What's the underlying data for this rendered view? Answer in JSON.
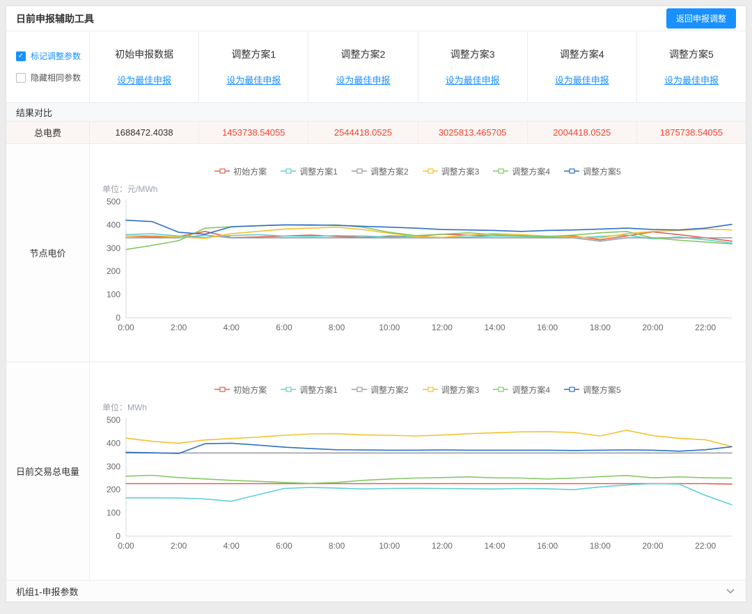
{
  "colors": {
    "accent": "#1890ff",
    "danger": "#f5432e"
  },
  "header": {
    "title": "日前申报辅助工具",
    "back_button": "返回申报调整"
  },
  "filters": {
    "mark_label": "标记调整参数",
    "hide_label": "隐藏相同参数"
  },
  "plans": [
    {
      "label": "初始申报数据",
      "link": "设为最佳申报"
    },
    {
      "label": "调整方案1",
      "link": "设为最佳申报"
    },
    {
      "label": "调整方案2",
      "link": "设为最佳申报"
    },
    {
      "label": "调整方案3",
      "link": "设为最佳申报"
    },
    {
      "label": "调整方案4",
      "link": "设为最佳申报"
    },
    {
      "label": "调整方案5",
      "link": "设为最佳申报"
    }
  ],
  "results": {
    "section_title": "结果对比",
    "row_label": "总电费",
    "values": [
      "1688472.4038",
      "1453738.54055",
      "2544418.0525",
      "3025813.465705",
      "2004418.0525",
      "1875738.54055"
    ]
  },
  "footer": {
    "title": "机组1-申报参数"
  },
  "chart_data": [
    {
      "type": "line",
      "row_label": "节点电价",
      "unit": "单位：元/MWh",
      "ylim": [
        0,
        500
      ],
      "yticks": [
        0,
        100,
        200,
        300,
        400,
        500
      ],
      "x_hours": 24,
      "xtick_labels": [
        "0:00",
        "2:00",
        "4:00",
        "6:00",
        "8:00",
        "10:00",
        "12:00",
        "14:00",
        "16:00",
        "18:00",
        "20:00",
        "22:00"
      ],
      "legend_position": "top-center",
      "grid": false,
      "series": [
        {
          "name": "初始方案",
          "color": "#e06052",
          "values": [
            352,
            348,
            350,
            372,
            345,
            348,
            352,
            356,
            350,
            346,
            352,
            350,
            360,
            356,
            352,
            354,
            350,
            352,
            336,
            352,
            370,
            358,
            344,
            330
          ]
        },
        {
          "name": "调整方案1",
          "color": "#5fd0d5",
          "values": [
            358,
            362,
            352,
            346,
            354,
            358,
            352,
            350,
            354,
            352,
            348,
            350,
            346,
            348,
            352,
            350,
            348,
            344,
            350,
            356,
            340,
            348,
            336,
            322
          ]
        },
        {
          "name": "调整方案2",
          "color": "#9aa0a6",
          "values": [
            344,
            344,
            344,
            356,
            344,
            344,
            344,
            344,
            344,
            344,
            344,
            344,
            344,
            344,
            344,
            344,
            344,
            344,
            330,
            344,
            344,
            344,
            344,
            344
          ]
        },
        {
          "name": "调整方案3",
          "color": "#f2c22e",
          "values": [
            352,
            354,
            348,
            342,
            362,
            372,
            382,
            386,
            390,
            380,
            364,
            350,
            346,
            356,
            362,
            358,
            352,
            348,
            344,
            362,
            372,
            376,
            382,
            378
          ]
        },
        {
          "name": "调整方案4",
          "color": "#84c865",
          "values": [
            294,
            312,
            332,
            386,
            392,
            396,
            400,
            398,
            400,
            390,
            368,
            354,
            360,
            366,
            358,
            352,
            350,
            356,
            366,
            372,
            344,
            334,
            326,
            318
          ]
        },
        {
          "name": "调整方案5",
          "color": "#2f6fc4",
          "values": [
            420,
            414,
            368,
            360,
            392,
            396,
            400,
            400,
            398,
            394,
            390,
            386,
            380,
            378,
            376,
            372,
            376,
            378,
            382,
            386,
            380,
            378,
            386,
            402
          ]
        }
      ]
    },
    {
      "type": "line",
      "row_label": "日前交易总电量",
      "unit": "单位：MWh",
      "ylim": [
        0,
        500
      ],
      "yticks": [
        0,
        100,
        200,
        300,
        400,
        500
      ],
      "x_hours": 24,
      "xtick_labels": [
        "0:00",
        "2:00",
        "4:00",
        "6:00",
        "8:00",
        "10:00",
        "12:00",
        "14:00",
        "16:00",
        "18:00",
        "20:00",
        "22:00"
      ],
      "legend_position": "top-center",
      "grid": false,
      "series": [
        {
          "name": "初始方案",
          "color": "#e06052",
          "values": [
            226,
            226,
            226,
            226,
            226,
            226,
            226,
            226,
            226,
            226,
            226,
            226,
            226,
            226,
            226,
            226,
            226,
            226,
            226,
            226,
            226,
            226,
            226,
            224
          ]
        },
        {
          "name": "调整方案1",
          "color": "#5fd0d5",
          "values": [
            165,
            165,
            164,
            160,
            150,
            178,
            205,
            210,
            207,
            203,
            205,
            206,
            205,
            204,
            203,
            205,
            204,
            200,
            212,
            220,
            226,
            224,
            175,
            135
          ]
        },
        {
          "name": "调整方案2",
          "color": "#9aa0a6",
          "values": [
            358,
            358,
            358,
            358,
            358,
            358,
            358,
            358,
            358,
            358,
            358,
            358,
            358,
            358,
            358,
            358,
            358,
            358,
            358,
            358,
            358,
            358,
            358,
            358
          ]
        },
        {
          "name": "调整方案3",
          "color": "#f2c22e",
          "values": [
            422,
            408,
            400,
            414,
            420,
            426,
            434,
            440,
            441,
            436,
            434,
            431,
            435,
            441,
            445,
            449,
            450,
            446,
            431,
            456,
            433,
            421,
            415,
            386
          ]
        },
        {
          "name": "调整方案4",
          "color": "#84c865",
          "values": [
            258,
            262,
            252,
            246,
            240,
            236,
            231,
            227,
            231,
            240,
            246,
            250,
            252,
            255,
            251,
            250,
            246,
            250,
            256,
            261,
            251,
            255,
            251,
            250
          ]
        },
        {
          "name": "调整方案5",
          "color": "#2f6fc4",
          "values": [
            361,
            359,
            356,
            398,
            400,
            392,
            383,
            377,
            372,
            371,
            370,
            370,
            371,
            370,
            370,
            370,
            370,
            369,
            370,
            371,
            370,
            366,
            372,
            385
          ]
        }
      ]
    }
  ]
}
